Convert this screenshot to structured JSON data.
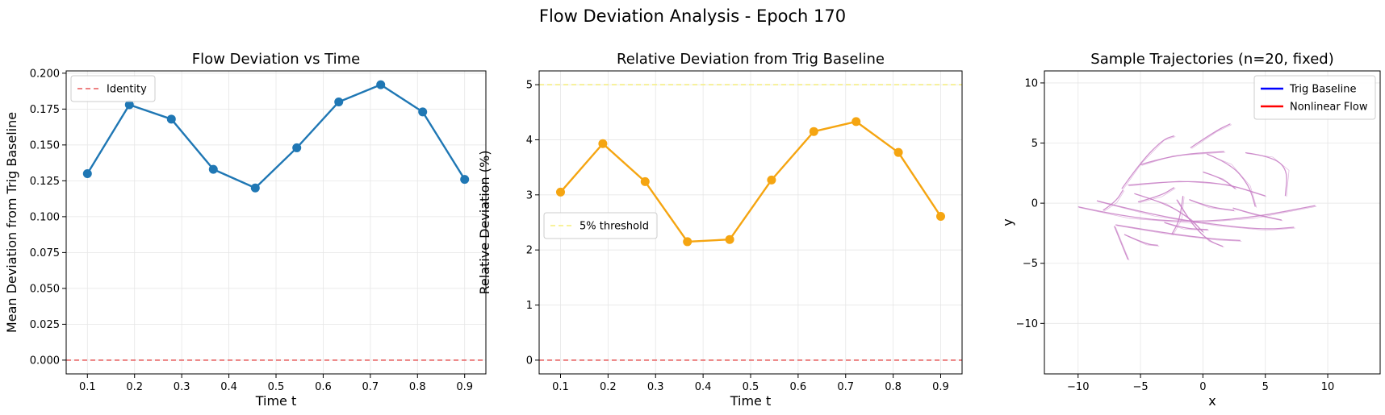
{
  "figure_title": "Flow Deviation Analysis - Epoch 170",
  "chart_data": [
    {
      "type": "line",
      "title": "Flow Deviation vs Time",
      "xlabel": "Time t",
      "ylabel": "Mean Deviation from Trig Baseline",
      "x": [
        0.1,
        0.189,
        0.278,
        0.367,
        0.456,
        0.544,
        0.633,
        0.722,
        0.811,
        0.9
      ],
      "series": [
        {
          "name": "",
          "color": "#1f77b4",
          "values": [
            0.13,
            0.178,
            0.168,
            0.133,
            0.12,
            0.148,
            0.18,
            0.192,
            0.173,
            0.126
          ]
        }
      ],
      "reference_lines": [
        {
          "label": "Identity",
          "y": 0.0,
          "color": "#e8585a",
          "style": "dashed"
        }
      ],
      "xlim": [
        0.055,
        0.945
      ],
      "ylim": [
        -0.0096,
        0.2016
      ],
      "xticks": [
        "0.1",
        "0.2",
        "0.3",
        "0.4",
        "0.5",
        "0.6",
        "0.7",
        "0.8",
        "0.9"
      ],
      "yticks": [
        "0.000",
        "0.025",
        "0.050",
        "0.075",
        "0.100",
        "0.125",
        "0.150",
        "0.175",
        "0.200"
      ],
      "grid": true,
      "legend": "upper-left"
    },
    {
      "type": "line",
      "title": "Relative Deviation from Trig Baseline",
      "xlabel": "Time t",
      "ylabel": "Relative Deviation (%)",
      "x": [
        0.1,
        0.189,
        0.278,
        0.367,
        0.456,
        0.544,
        0.633,
        0.722,
        0.811,
        0.9
      ],
      "series": [
        {
          "name": "",
          "color": "#f5a511",
          "values": [
            3.05,
            3.93,
            3.24,
            2.15,
            2.19,
            3.27,
            4.15,
            4.33,
            3.77,
            2.61
          ]
        }
      ],
      "reference_lines": [
        {
          "label": "",
          "y": 0.0,
          "color": "#e8585a",
          "style": "dashed"
        },
        {
          "label": "5% threshold",
          "y": 5.0,
          "color": "#f5ee7a",
          "style": "dashed"
        }
      ],
      "xlim": [
        0.055,
        0.945
      ],
      "ylim": [
        -0.25,
        5.25
      ],
      "xticks": [
        "0.1",
        "0.2",
        "0.3",
        "0.4",
        "0.5",
        "0.6",
        "0.7",
        "0.8",
        "0.9"
      ],
      "yticks": [
        "0",
        "1",
        "2",
        "3",
        "4",
        "5"
      ],
      "grid": true,
      "legend": "center-left"
    },
    {
      "type": "line",
      "title": "Sample Trajectories (n=20, fixed)",
      "xlabel": "x",
      "ylabel": "y",
      "xlim": [
        -12.7,
        14.2
      ],
      "ylim": [
        -14.2,
        11.0
      ],
      "xticks": [
        "−10",
        "−5",
        "0",
        "5",
        "10"
      ],
      "yticks": [
        "−10",
        "−5",
        "0",
        "5",
        "10"
      ],
      "grid": true,
      "legend": "upper-right",
      "legend_entries": [
        {
          "name": "Trig Baseline",
          "color": "#0000ff"
        },
        {
          "name": "Nonlinear Flow",
          "color": "#ff0000"
        }
      ],
      "trajectory_color": "#c77dc4",
      "trajectories": [
        [
          [
            -10,
            -0.3
          ],
          [
            -6,
            -1.2
          ],
          [
            -1,
            -1.6
          ],
          [
            4,
            -1.2
          ],
          [
            9,
            -0.2
          ]
        ],
        [
          [
            -8.5,
            0.2
          ],
          [
            -4,
            -1.0
          ],
          [
            1,
            -1.8
          ],
          [
            5,
            -2.2
          ],
          [
            7.3,
            -2.0
          ]
        ],
        [
          [
            -6,
            1.5
          ],
          [
            -2,
            1.9
          ],
          [
            2,
            1.6
          ],
          [
            5,
            0.6
          ]
        ],
        [
          [
            -7,
            -1.8
          ],
          [
            -3,
            -2.5
          ],
          [
            1,
            -3.0
          ],
          [
            3,
            -3.1
          ]
        ],
        [
          [
            -5.5,
            0.8
          ],
          [
            -3,
            0
          ],
          [
            -1,
            -1.3
          ],
          [
            0,
            -2.4
          ]
        ],
        [
          [
            -5,
            3.2
          ],
          [
            -2.5,
            4.0
          ],
          [
            1.7,
            4.3
          ]
        ],
        [
          [
            -6.5,
            1.2
          ],
          [
            -5,
            3.4
          ],
          [
            -3.2,
            5.3
          ],
          [
            -2.3,
            5.6
          ]
        ],
        [
          [
            -1,
            4.6
          ],
          [
            1,
            6.0
          ],
          [
            2.2,
            6.6
          ]
        ],
        [
          [
            0.3,
            4.1
          ],
          [
            2.2,
            3.3
          ],
          [
            3.7,
            1.5
          ],
          [
            4.2,
            -0.3
          ]
        ],
        [
          [
            3.4,
            4.2
          ],
          [
            5.5,
            3.9
          ],
          [
            6.8,
            2.8
          ],
          [
            6.6,
            0.6
          ]
        ],
        [
          [
            -7.1,
            -1.9
          ],
          [
            -6.4,
            -3.7
          ],
          [
            -6,
            -4.7
          ]
        ],
        [
          [
            -2.1,
            0.3
          ],
          [
            -1,
            -1.6
          ],
          [
            0.4,
            -3.1
          ],
          [
            1.6,
            -3.6
          ]
        ],
        [
          [
            -6.3,
            -2.6
          ],
          [
            -4.6,
            -3.4
          ],
          [
            -3.6,
            -3.5
          ]
        ],
        [
          [
            -1.6,
            0.6
          ],
          [
            -1.8,
            -1.3
          ],
          [
            -2.5,
            -2.6
          ]
        ],
        [
          [
            -1.1,
            0.3
          ],
          [
            0.4,
            -0.3
          ],
          [
            2.5,
            -0.6
          ]
        ],
        [
          [
            -3.1,
            -1.6
          ],
          [
            -1.6,
            -2.1
          ],
          [
            0.4,
            -2.2
          ]
        ],
        [
          [
            2.4,
            -0.4
          ],
          [
            4,
            -0.9
          ],
          [
            6.3,
            -1.4
          ]
        ],
        [
          [
            -5.2,
            0.1
          ],
          [
            -3.4,
            0.6
          ],
          [
            -2.3,
            1.3
          ]
        ],
        [
          [
            0,
            2.6
          ],
          [
            1.5,
            2.1
          ],
          [
            2.6,
            1.2
          ]
        ],
        [
          [
            -8,
            -0.6
          ],
          [
            -7,
            0.1
          ],
          [
            -6.4,
            1.1
          ]
        ]
      ]
    }
  ]
}
